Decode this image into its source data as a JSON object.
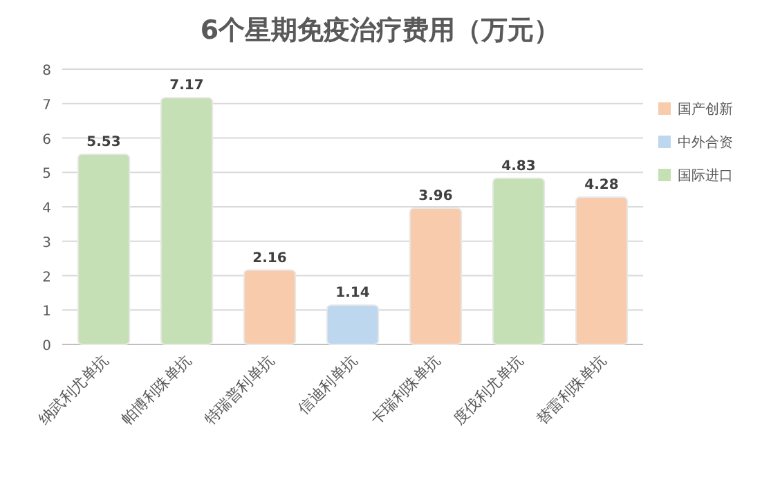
{
  "chart_data": {
    "type": "bar",
    "title": "6个星期免疫治疗费用（万元）",
    "categories": [
      "纳武利尤单抗",
      "帕博利珠单抗",
      "特瑞普利单抗",
      "信迪利单抗",
      "卡瑞利珠单抗",
      "度伐利尤单抗",
      "替雷利珠单抗"
    ],
    "series": [
      {
        "name": "国产创新",
        "color": "#f8cbad",
        "values": [
          null,
          null,
          2.16,
          null,
          3.96,
          null,
          4.28
        ]
      },
      {
        "name": "中外合资",
        "color": "#bdd7ee",
        "values": [
          null,
          null,
          null,
          1.14,
          null,
          null,
          null
        ]
      },
      {
        "name": "国际进口",
        "color": "#c5e0b4",
        "values": [
          5.53,
          7.17,
          null,
          null,
          null,
          4.83,
          null
        ]
      }
    ],
    "ylim": [
      0,
      8
    ],
    "yticks": [
      0,
      1,
      2,
      3,
      4,
      5,
      6,
      7,
      8
    ],
    "grid": "y",
    "legend": "right",
    "data_labels": true
  }
}
